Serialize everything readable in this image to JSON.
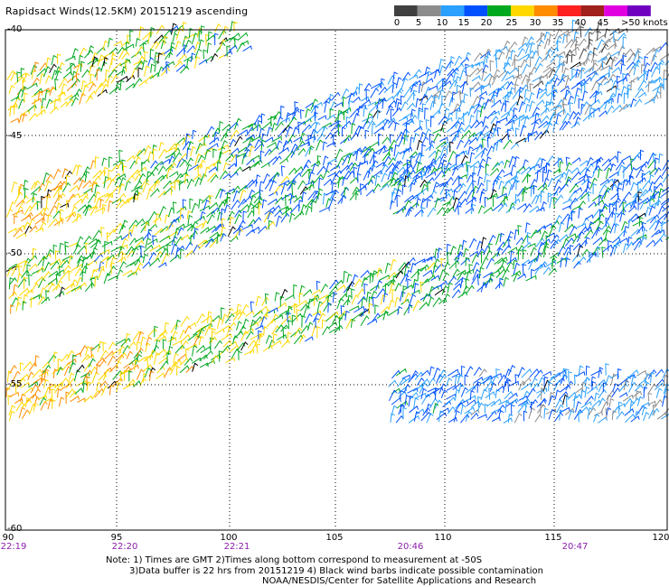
{
  "title": "Rapidsact Winds(12.5KM) 20151219 ascending",
  "legend": {
    "ticks": [
      "0",
      "5",
      "10",
      "15",
      "20",
      "25",
      "30",
      "35",
      "40",
      "45",
      ">50 knots"
    ],
    "colors": [
      "#404040",
      "#8c8c8c",
      "#2aa0ff",
      "#0050ff",
      "#00a820",
      "#ffd800",
      "#ff8c00",
      "#ff2020",
      "#a0201c",
      "#e000e0",
      "#7000c0"
    ]
  },
  "axes": {
    "lat_ticks": [
      "-40",
      "-45",
      "-50",
      "-55",
      "-60"
    ],
    "lon_ticks": [
      "90",
      "95",
      "100",
      "105",
      "110",
      "115",
      "120"
    ],
    "time_ticks": [
      "22:19",
      "22:20",
      "22:21",
      "20:46",
      "20:47"
    ]
  },
  "notes": [
    "Note: 1) Times are GMT 2)Times along bottom correspond to measurement at -50S",
    "3)Data buffer is 22 hrs from 20151219 4) Black wind barbs indicate possible contamination",
    "NOAA/NESDIS/Center for Satellite Applications and Research"
  ],
  "chart_data": {
    "type": "scatter",
    "xlim": [
      90,
      120
    ],
    "ylim": [
      -60,
      -40
    ],
    "grid": "dotted",
    "x_ticks": [
      90,
      95,
      100,
      105,
      110,
      115,
      120
    ],
    "y_ticks": [
      -40,
      -45,
      -50,
      -55,
      -60
    ],
    "swaths": [
      {
        "lon_start": 90,
        "lat_start": -43.5,
        "lon_end": 100.5,
        "lat_end": -40,
        "speed_start_kt": 28,
        "speed_end_kt": 22
      },
      {
        "lon_start": 90,
        "lat_start": -48.5,
        "lon_end": 118,
        "lat_end": -40.5,
        "speed_start_kt": 30,
        "speed_end_kt": 6
      },
      {
        "lon_start": 90,
        "lat_start": -51.5,
        "lon_end": 120,
        "lat_end": -42,
        "speed_start_kt": 26,
        "speed_end_kt": 12
      },
      {
        "lon_start": 107.5,
        "lat_start": -47.5,
        "lon_end": 120,
        "lat_end": -47,
        "speed_start_kt": 18,
        "speed_end_kt": 16
      },
      {
        "lon_start": 90,
        "lat_start": -55.5,
        "lon_end": 120,
        "lat_end": -48.5,
        "speed_start_kt": 30,
        "speed_end_kt": 16
      },
      {
        "lon_start": 107.5,
        "lat_start": -55.5,
        "lon_end": 120,
        "lat_end": -55.5,
        "speed_start_kt": 16,
        "speed_end_kt": 12
      }
    ]
  }
}
